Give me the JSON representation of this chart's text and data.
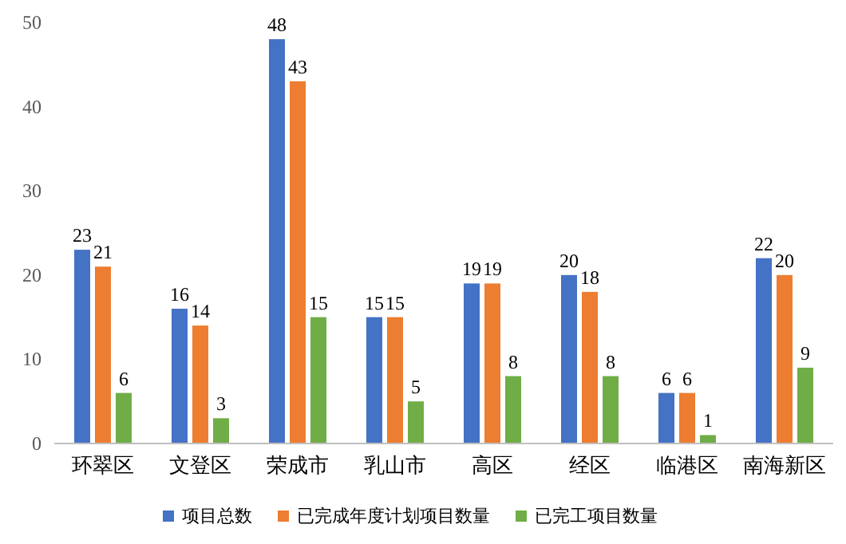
{
  "chart_data": {
    "type": "bar",
    "categories": [
      "环翠区",
      "文登区",
      "荣成市",
      "乳山市",
      "高区",
      "经区",
      "临港区",
      "南海新区"
    ],
    "series": [
      {
        "name": "项目总数",
        "color": "#4472c4",
        "values": [
          23,
          16,
          48,
          15,
          19,
          20,
          6,
          22
        ]
      },
      {
        "name": "已完成年度计划项目数量",
        "color": "#ed7d31",
        "values": [
          21,
          14,
          43,
          15,
          19,
          18,
          6,
          20
        ]
      },
      {
        "name": "已完工项目数量",
        "color": "#70ad47",
        "values": [
          6,
          3,
          15,
          5,
          8,
          8,
          1,
          9
        ]
      }
    ],
    "ylim": [
      0,
      50
    ],
    "yticks": [
      0,
      10,
      20,
      30,
      40,
      50
    ],
    "data_labels": true,
    "legend": "bottom"
  }
}
